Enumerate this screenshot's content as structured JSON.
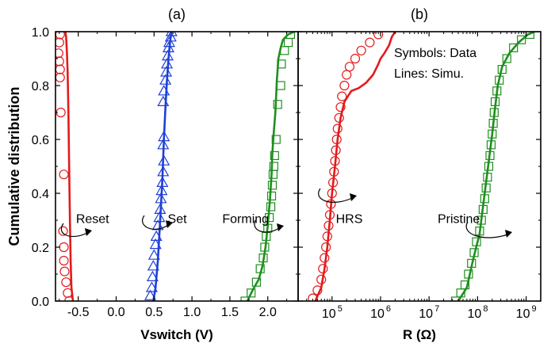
{
  "figure": {
    "ylabel": "Cumulative distribution"
  },
  "chart_data": [
    {
      "type": "line",
      "panel_label": "(a)",
      "xlabel": "Vswitch (V)",
      "ylabel": "Cumulative distribution",
      "xlim": [
        -0.8,
        2.4
      ],
      "ylim": [
        0.0,
        1.0
      ],
      "x_ticks": [
        "-0.5",
        "0.0",
        "0.5",
        "1.0",
        "1.5",
        "2.0"
      ],
      "x_tick_values": [
        -0.5,
        0.0,
        0.5,
        1.0,
        1.5,
        2.0
      ],
      "y_ticks": [
        "0.0",
        "0.2",
        "0.4",
        "0.6",
        "0.8",
        "1.0"
      ],
      "y_tick_values": [
        0.0,
        0.2,
        0.4,
        0.6,
        0.8,
        1.0
      ],
      "grid": false,
      "series": [
        {
          "name": "Reset",
          "color": "#e31a1c",
          "marker": "circle",
          "data_points": [
            [
              -0.62,
              0.0
            ],
            [
              -0.64,
              0.03
            ],
            [
              -0.66,
              0.07
            ],
            [
              -0.68,
              0.11
            ],
            [
              -0.69,
              0.15
            ],
            [
              -0.69,
              0.2
            ],
            [
              -0.7,
              0.26
            ],
            [
              -0.69,
              0.47
            ],
            [
              -0.73,
              0.7
            ],
            [
              -0.74,
              0.83
            ],
            [
              -0.74,
              0.86
            ],
            [
              -0.75,
              0.89
            ],
            [
              -0.76,
              0.92
            ],
            [
              -0.75,
              0.96
            ],
            [
              -0.74,
              0.99
            ]
          ],
          "line": [
            [
              -0.57,
              0.0
            ],
            [
              -0.59,
              0.05
            ],
            [
              -0.6,
              0.15
            ],
            [
              -0.61,
              0.3
            ],
            [
              -0.62,
              0.5
            ],
            [
              -0.63,
              0.7
            ],
            [
              -0.64,
              0.85
            ],
            [
              -0.65,
              0.93
            ],
            [
              -0.66,
              0.98
            ],
            [
              -0.67,
              1.0
            ]
          ]
        },
        {
          "name": "Set",
          "color": "#1f3fd6",
          "marker": "triangle",
          "data_points": [
            [
              0.45,
              0.02
            ],
            [
              0.47,
              0.05
            ],
            [
              0.48,
              0.09
            ],
            [
              0.49,
              0.13
            ],
            [
              0.5,
              0.17
            ],
            [
              0.52,
              0.21
            ],
            [
              0.53,
              0.24
            ],
            [
              0.55,
              0.28
            ],
            [
              0.57,
              0.31
            ],
            [
              0.58,
              0.34
            ],
            [
              0.59,
              0.38
            ],
            [
              0.6,
              0.41
            ],
            [
              0.61,
              0.44
            ],
            [
              0.62,
              0.48
            ],
            [
              0.63,
              0.52
            ],
            [
              0.62,
              0.58
            ],
            [
              0.63,
              0.61
            ],
            [
              0.62,
              0.74
            ],
            [
              0.63,
              0.78
            ],
            [
              0.65,
              0.82
            ],
            [
              0.66,
              0.85
            ],
            [
              0.67,
              0.88
            ],
            [
              0.68,
              0.91
            ],
            [
              0.69,
              0.94
            ],
            [
              0.7,
              0.96
            ],
            [
              0.72,
              0.98
            ],
            [
              0.73,
              1.0
            ]
          ],
          "line": [
            [
              0.49,
              0.0
            ],
            [
              0.52,
              0.05
            ],
            [
              0.55,
              0.15
            ],
            [
              0.58,
              0.3
            ],
            [
              0.61,
              0.45
            ],
            [
              0.63,
              0.6
            ],
            [
              0.65,
              0.72
            ],
            [
              0.67,
              0.82
            ],
            [
              0.69,
              0.9
            ],
            [
              0.71,
              0.96
            ],
            [
              0.73,
              1.0
            ]
          ]
        },
        {
          "name": "Forming",
          "color": "#1f8f1f",
          "marker": "square",
          "data_points": [
            [
              1.7,
              0.0
            ],
            [
              1.78,
              0.03
            ],
            [
              1.85,
              0.07
            ],
            [
              1.9,
              0.12
            ],
            [
              1.94,
              0.16
            ],
            [
              1.96,
              0.2
            ],
            [
              1.98,
              0.24
            ],
            [
              2.0,
              0.27
            ],
            [
              2.02,
              0.31
            ],
            [
              2.04,
              0.35
            ],
            [
              2.05,
              0.39
            ],
            [
              2.06,
              0.43
            ],
            [
              2.07,
              0.47
            ],
            [
              2.08,
              0.5
            ],
            [
              2.09,
              0.54
            ],
            [
              2.11,
              0.6
            ],
            [
              2.13,
              0.73
            ],
            [
              2.17,
              0.8
            ],
            [
              2.18,
              0.88
            ],
            [
              2.22,
              0.93
            ],
            [
              2.27,
              0.96
            ],
            [
              2.3,
              0.99
            ]
          ],
          "line": [
            [
              1.73,
              0.0
            ],
            [
              1.8,
              0.04
            ],
            [
              1.88,
              0.08
            ],
            [
              1.93,
              0.13
            ],
            [
              1.97,
              0.2
            ],
            [
              2.0,
              0.28
            ],
            [
              2.03,
              0.38
            ],
            [
              2.05,
              0.47
            ],
            [
              2.06,
              0.55
            ],
            [
              2.08,
              0.63
            ],
            [
              2.1,
              0.7
            ],
            [
              2.11,
              0.76
            ],
            [
              2.12,
              0.82
            ],
            [
              2.13,
              0.86
            ],
            [
              2.14,
              0.9
            ],
            [
              2.17,
              0.94
            ],
            [
              2.2,
              0.97
            ],
            [
              2.27,
              0.99
            ],
            [
              2.35,
              1.0
            ]
          ]
        }
      ],
      "annotations": [
        {
          "text": "Reset",
          "x": -0.53,
          "y": 0.29
        },
        {
          "text": "Set",
          "x": 0.68,
          "y": 0.29
        },
        {
          "text": "Forming",
          "x": 1.4,
          "y": 0.29
        }
      ]
    },
    {
      "type": "line",
      "panel_label": "(b)",
      "xlabel": "R (Ω)",
      "x_scale": "log",
      "xlim": [
        20000,
        2000000000
      ],
      "ylim": [
        0.0,
        1.0
      ],
      "x_ticks": [
        "10",
        "10",
        "10",
        "10",
        "10"
      ],
      "x_tick_exponents": [
        "5",
        "6",
        "7",
        "8",
        "9"
      ],
      "x_tick_values": [
        100000,
        1000000,
        10000000,
        100000000,
        1000000000
      ],
      "grid": false,
      "legend_text": [
        "Symbols: Data",
        "Lines:  Simu."
      ],
      "legend_position": "top-right",
      "series": [
        {
          "name": "HRS",
          "color": "#e31a1c",
          "marker": "circle",
          "data_points": [
            [
              40000,
              0.01
            ],
            [
              50000,
              0.04
            ],
            [
              60000,
              0.08
            ],
            [
              65000,
              0.12
            ],
            [
              70000,
              0.16
            ],
            [
              75000,
              0.2
            ],
            [
              80000,
              0.24
            ],
            [
              85000,
              0.28
            ],
            [
              90000,
              0.32
            ],
            [
              95000,
              0.36
            ],
            [
              100000,
              0.4
            ],
            [
              105000,
              0.44
            ],
            [
              110000,
              0.48
            ],
            [
              115000,
              0.52
            ],
            [
              120000,
              0.56
            ],
            [
              125000,
              0.6
            ],
            [
              130000,
              0.64
            ],
            [
              140000,
              0.68
            ],
            [
              150000,
              0.72
            ],
            [
              160000,
              0.76
            ],
            [
              180000,
              0.8
            ],
            [
              200000,
              0.84
            ],
            [
              230000,
              0.87
            ],
            [
              300000,
              0.9
            ],
            [
              400000,
              0.93
            ],
            [
              600000,
              0.96
            ],
            [
              900000,
              0.99
            ]
          ],
          "line": [
            [
              45000,
              0.0
            ],
            [
              60000,
              0.05
            ],
            [
              70000,
              0.12
            ],
            [
              80000,
              0.2
            ],
            [
              90000,
              0.3
            ],
            [
              100000,
              0.4
            ],
            [
              115000,
              0.5
            ],
            [
              130000,
              0.6
            ],
            [
              150000,
              0.68
            ],
            [
              180000,
              0.74
            ],
            [
              250000,
              0.78
            ],
            [
              350000,
              0.79
            ],
            [
              500000,
              0.81
            ],
            [
              700000,
              0.84
            ],
            [
              900000,
              0.88
            ],
            [
              1000000,
              0.9
            ],
            [
              1200000,
              0.92
            ],
            [
              1500000,
              0.95
            ],
            [
              1700000,
              0.98
            ],
            [
              2000000,
              1.0
            ]
          ]
        },
        {
          "name": "Pristine",
          "color": "#1f8f1f",
          "marker": "square",
          "data_points": [
            [
              35000000,
              0.0
            ],
            [
              45000000,
              0.03
            ],
            [
              55000000,
              0.06
            ],
            [
              65000000,
              0.1
            ],
            [
              75000000,
              0.14
            ],
            [
              85000000,
              0.18
            ],
            [
              95000000,
              0.22
            ],
            [
              110000000,
              0.26
            ],
            [
              120000000,
              0.3
            ],
            [
              130000000,
              0.34
            ],
            [
              140000000,
              0.38
            ],
            [
              150000000,
              0.42
            ],
            [
              160000000,
              0.46
            ],
            [
              170000000,
              0.5
            ],
            [
              180000000,
              0.54
            ],
            [
              190000000,
              0.58
            ],
            [
              200000000,
              0.62
            ],
            [
              210000000,
              0.66
            ],
            [
              220000000,
              0.7
            ],
            [
              230000000,
              0.74
            ],
            [
              250000000,
              0.78
            ],
            [
              280000000,
              0.82
            ],
            [
              320000000,
              0.86
            ],
            [
              400000000,
              0.9
            ],
            [
              550000000,
              0.94
            ],
            [
              800000000,
              0.97
            ],
            [
              1200000000,
              0.99
            ]
          ],
          "line": [
            [
              40000000,
              0.0
            ],
            [
              60000000,
              0.05
            ],
            [
              80000000,
              0.15
            ],
            [
              110000000,
              0.25
            ],
            [
              140000000,
              0.4
            ],
            [
              170000000,
              0.52
            ],
            [
              200000000,
              0.62
            ],
            [
              230000000,
              0.72
            ],
            [
              260000000,
              0.8
            ],
            [
              320000000,
              0.87
            ],
            [
              450000000,
              0.92
            ],
            [
              700000000,
              0.96
            ],
            [
              1100000000,
              0.99
            ],
            [
              1500000000,
              1.0
            ]
          ]
        }
      ],
      "annotations": [
        {
          "text": "HRS",
          "x": 120000,
          "y": 0.29
        },
        {
          "text": "Pristine",
          "x": 15000000,
          "y": 0.29
        }
      ]
    }
  ]
}
